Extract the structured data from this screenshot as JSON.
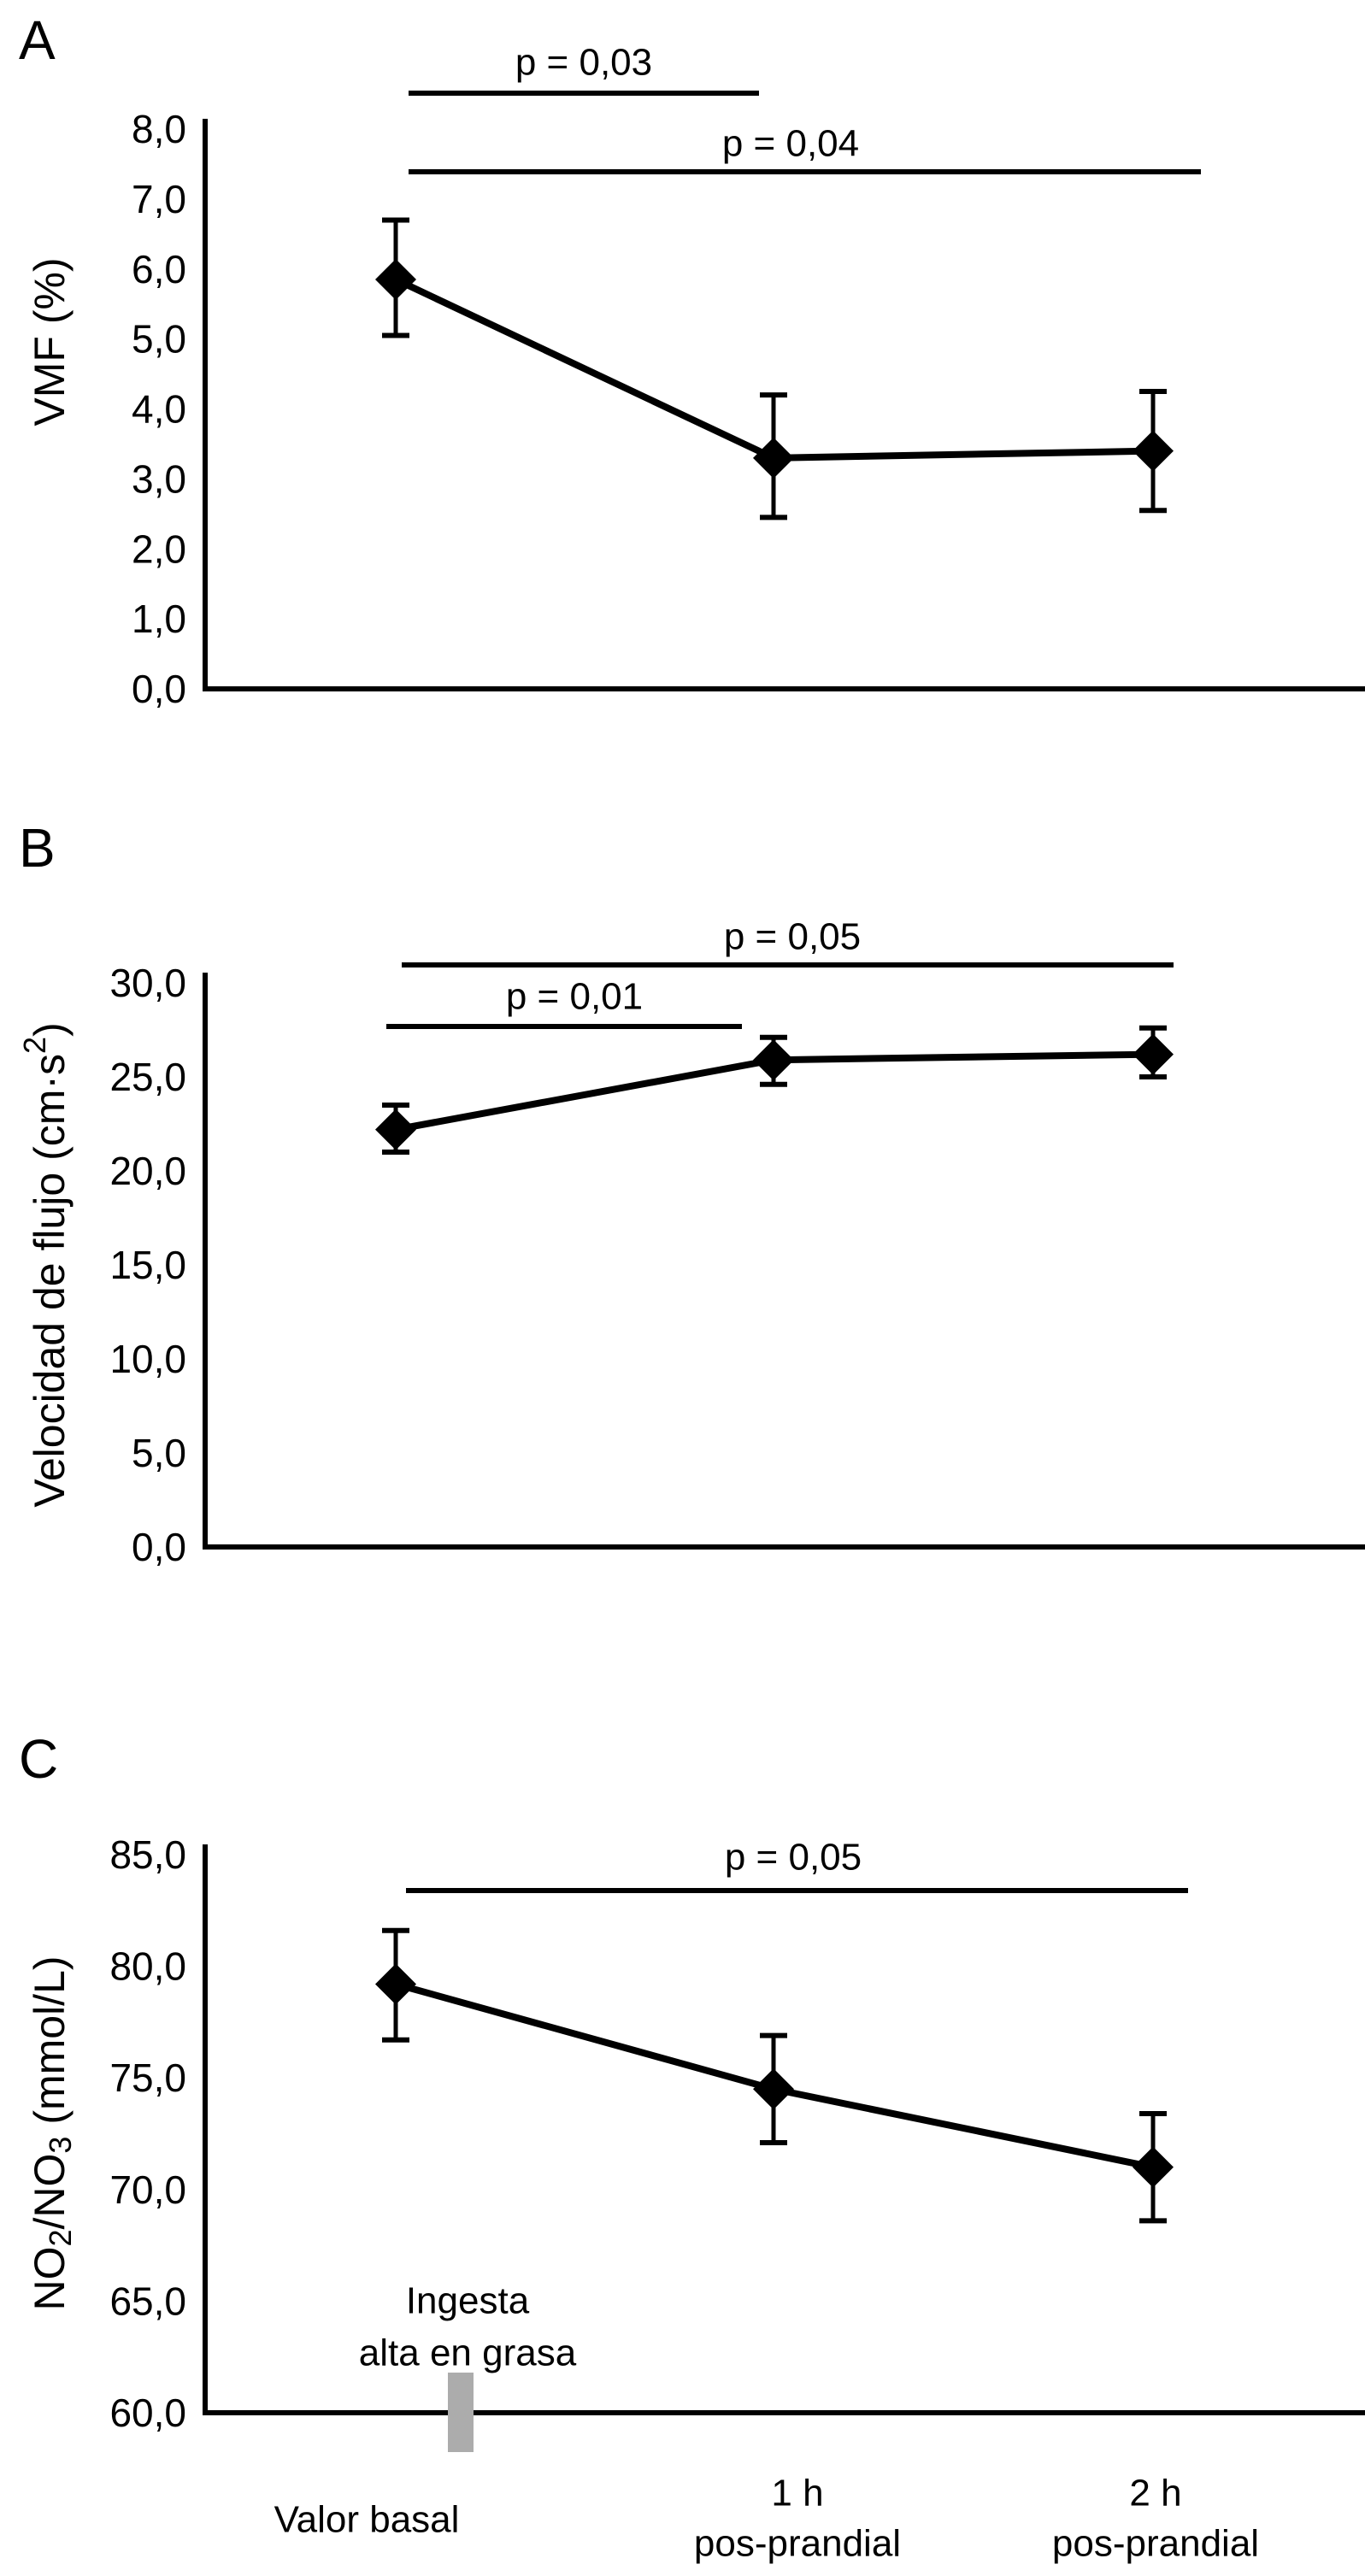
{
  "figure": {
    "background": "#ffffff",
    "ink": "#000000",
    "annotation_bar_color": "#acacac"
  },
  "x_axis": {
    "categories": [
      {
        "lines": [
          "Valor basal"
        ]
      },
      {
        "lines": [
          "1 h",
          "pos-prandial"
        ]
      },
      {
        "lines": [
          "2 h",
          "pos-prandial"
        ]
      }
    ]
  },
  "chart_data": [
    {
      "panel": "A",
      "type": "line",
      "marker": "diamond",
      "ylabel": "VMF (%)",
      "ylabel_parts": [
        {
          "text": "VMF (%)"
        }
      ],
      "categories": [
        "Valor basal",
        "1 h pos-prandial",
        "2 h pos-prandial"
      ],
      "series": [
        {
          "name": "VMF",
          "values": [
            5.85,
            3.3,
            3.4
          ],
          "err_low": [
            5.05,
            2.45,
            2.55
          ],
          "err_high": [
            6.7,
            4.2,
            4.25
          ]
        }
      ],
      "ylim": [
        0,
        8
      ],
      "ytick_labels": [
        "8,0",
        "7,0",
        "6,0",
        "5,0",
        "4,0",
        "3,0",
        "2,0",
        "1,0",
        "0,0"
      ],
      "grid": false,
      "significance": [
        {
          "label": "p = 0,03",
          "from": 0,
          "to": 1
        },
        {
          "label": "p = 0,04",
          "from": 0,
          "to": 2
        }
      ]
    },
    {
      "panel": "B",
      "type": "line",
      "marker": "diamond",
      "ylabel": "Velocidad de flujo (cm·s2)",
      "ylabel_parts": [
        {
          "text": "Velocidad de flujo (cm·s"
        },
        {
          "text": "2",
          "script": "sup"
        },
        {
          "text": ")"
        }
      ],
      "categories": [
        "Valor basal",
        "1 h pos-prandial",
        "2 h pos-prandial"
      ],
      "series": [
        {
          "name": "Velocidad de flujo",
          "values": [
            22.2,
            25.9,
            26.2
          ],
          "err_low": [
            21.0,
            24.6,
            25.0
          ],
          "err_high": [
            23.5,
            27.1,
            27.6
          ]
        }
      ],
      "ylim": [
        0,
        30
      ],
      "ytick_labels": [
        "30,0",
        "25,0",
        "20,0",
        "15,0",
        "10,0",
        "5,0",
        "0,0"
      ],
      "grid": false,
      "significance": [
        {
          "label": "p = 0,05",
          "from": 0,
          "to": 2
        },
        {
          "label": "p = 0,01",
          "from": 0,
          "to": 1
        }
      ]
    },
    {
      "panel": "C",
      "type": "line",
      "marker": "diamond",
      "ylabel": "NO2/NO3 (mmol/L)",
      "ylabel_parts": [
        {
          "text": "NO"
        },
        {
          "text": "2",
          "script": "sub"
        },
        {
          "text": "/NO"
        },
        {
          "text": "3",
          "script": "sub"
        },
        {
          "text": " (mmol/L)"
        }
      ],
      "categories": [
        "Valor basal",
        "1 h pos-prandial",
        "2 h pos-prandial"
      ],
      "series": [
        {
          "name": "NO2/NO3",
          "values": [
            79.2,
            74.5,
            71.0
          ],
          "err_low": [
            76.7,
            72.1,
            68.6
          ],
          "err_high": [
            81.6,
            76.9,
            73.4
          ]
        }
      ],
      "ylim": [
        60,
        85
      ],
      "ytick_labels": [
        "85,0",
        "80,0",
        "75,0",
        "70,0",
        "65,0",
        "60,0"
      ],
      "grid": false,
      "significance": [
        {
          "label": "p = 0,05",
          "from": 0,
          "to": 2
        }
      ],
      "annotation": {
        "lines": [
          "Ingesta",
          "alta en grasa"
        ],
        "marker": "gray-bar"
      }
    }
  ]
}
